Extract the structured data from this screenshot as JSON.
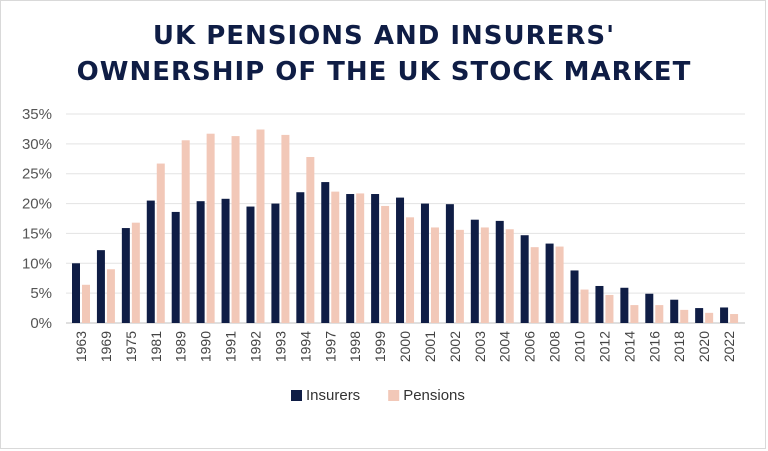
{
  "chart_data": {
    "type": "bar",
    "title_lines": [
      "UK PENSIONS AND INSURERS'",
      "OWNERSHIP OF THE UK STOCK MARKET"
    ],
    "categories": [
      "1963",
      "1969",
      "1975",
      "1981",
      "1989",
      "1990",
      "1991",
      "1992",
      "1993",
      "1994",
      "1997",
      "1998",
      "1999",
      "2000",
      "2001",
      "2002",
      "2003",
      "2004",
      "2006",
      "2008",
      "2010",
      "2012",
      "2014",
      "2016",
      "2018",
      "2020",
      "2022"
    ],
    "series": [
      {
        "name": "Insurers",
        "color": "#0f1d45",
        "values": [
          10.0,
          12.2,
          15.9,
          20.5,
          18.6,
          20.4,
          20.8,
          19.5,
          20.0,
          21.9,
          23.6,
          21.6,
          21.6,
          21.0,
          20.0,
          19.9,
          17.3,
          17.1,
          14.7,
          13.3,
          8.8,
          6.2,
          5.9,
          4.9,
          3.9,
          2.5,
          2.6
        ]
      },
      {
        "name": "Pensions",
        "color": "#f2c8b8",
        "values": [
          6.4,
          9.0,
          16.8,
          26.7,
          30.6,
          31.7,
          31.3,
          32.4,
          31.5,
          27.8,
          22.0,
          21.7,
          19.6,
          17.7,
          16.0,
          15.6,
          16.0,
          15.7,
          12.7,
          12.8,
          5.6,
          4.7,
          3.0,
          3.0,
          2.2,
          1.7,
          1.5
        ]
      }
    ],
    "y_ticks": [
      "0%",
      "5%",
      "10%",
      "15%",
      "20%",
      "25%",
      "30%",
      "35%"
    ],
    "ylim": [
      0,
      35
    ],
    "grid": true,
    "legend_position": "bottom-center"
  }
}
